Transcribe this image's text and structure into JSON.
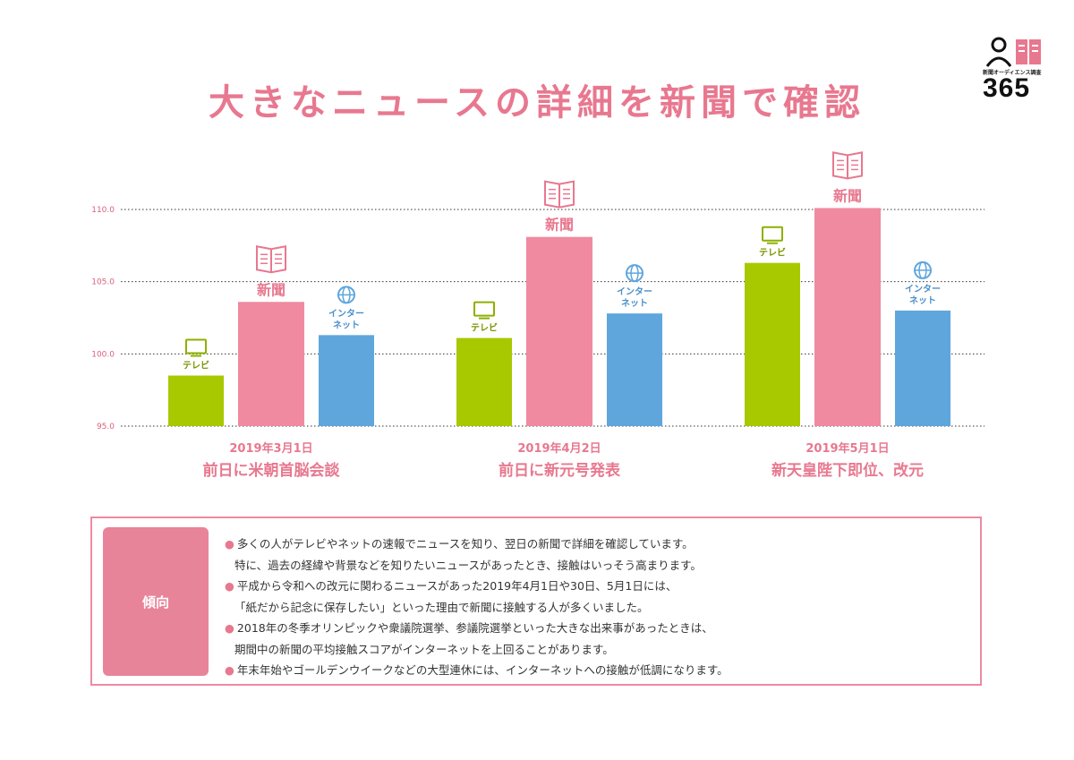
{
  "title": "大きなニュースの詳細を新聞で確認",
  "logo": {
    "subtitle": "新聞オーディエンス調査",
    "number": "365"
  },
  "chart_data": {
    "type": "bar",
    "ylim": [
      95,
      110
    ],
    "yticks": [
      "95.0",
      "100.0",
      "105.0",
      "110.0"
    ],
    "grid": true,
    "categories": [
      {
        "date": "2019年3月1日",
        "event": "前日に米朝首脳会談"
      },
      {
        "date": "2019年4月2日",
        "event": "前日に新元号発表"
      },
      {
        "date": "2019年5月1日",
        "event": "新天皇陛下即位、改元"
      }
    ],
    "series": [
      {
        "name": "テレビ",
        "label_lines": [
          "テレビ"
        ],
        "color": "#a8c800",
        "icon": "tv-icon",
        "values": [
          98.5,
          101.1,
          106.3
        ]
      },
      {
        "name": "新聞",
        "label_lines": [
          "新聞"
        ],
        "color": "#ef8aa0",
        "icon": "newspaper-icon",
        "values": [
          103.6,
          108.1,
          110.1
        ]
      },
      {
        "name": "インターネット",
        "label_lines": [
          "インター",
          "ネット"
        ],
        "color": "#5fa6dd",
        "icon": "globe-icon",
        "values": [
          101.3,
          102.8,
          103.0
        ]
      }
    ]
  },
  "trend": {
    "label": "傾向",
    "items": [
      {
        "lines": [
          "多くの人がテレビやネットの速報でニュースを知り、翌日の新聞で詳細を確認しています。",
          "特に、過去の経緯や背景などを知りたいニュースがあったとき、接触はいっそう高まります。"
        ]
      },
      {
        "lines": [
          "平成から令和への改元に関わるニュースがあった2019年4月1日や30日、5月1日には、",
          "「紙だから記念に保存したい」といった理由で新聞に接触する人が多くいました。"
        ]
      },
      {
        "lines": [
          "2018年の冬季オリンピックや衆議院選挙、参議院選挙といった大きな出来事があったときは、",
          "期間中の新聞の平均接触スコアがインターネットを上回ることがあります。"
        ]
      },
      {
        "lines": [
          "年末年始やゴールデンウイークなどの大型連休には、インターネットへの接触が低調になります。"
        ]
      }
    ]
  }
}
